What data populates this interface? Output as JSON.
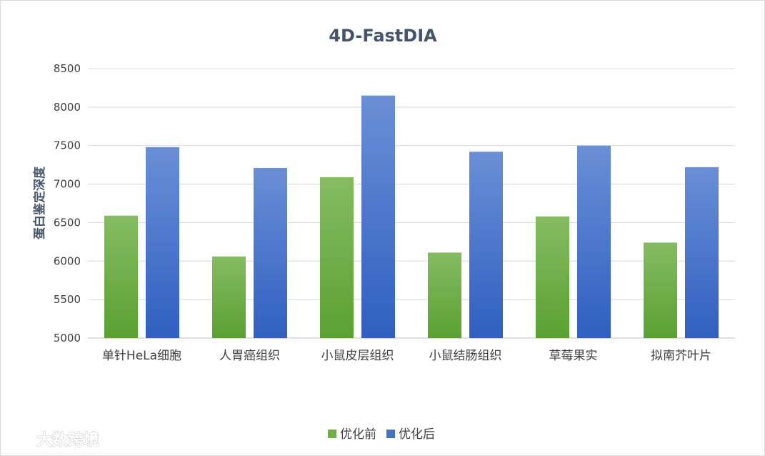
{
  "chart_data": {
    "type": "bar",
    "title": "4D-FastDIA",
    "xlabel": "",
    "ylabel": "蛋白鉴定深度",
    "categories": [
      "单针HeLa细胞",
      "人胃癌组织",
      "小鼠皮层组织",
      "小鼠结肠组织",
      "草莓果实",
      "拟南芥叶片"
    ],
    "series": [
      {
        "name": "优化前",
        "values": [
          6590,
          6060,
          7090,
          6110,
          6580,
          6240
        ],
        "color": "#70ad47"
      },
      {
        "name": "优化后",
        "values": [
          7480,
          7210,
          8150,
          7420,
          7500,
          7220
        ],
        "color": "#4472c4"
      }
    ],
    "ylim": [
      5000,
      8500
    ],
    "yticks": [
      5000,
      5500,
      6000,
      6500,
      7000,
      7500,
      8000,
      8500
    ],
    "grid": true,
    "legend_position": "bottom"
  },
  "watermark": "大数跨境"
}
